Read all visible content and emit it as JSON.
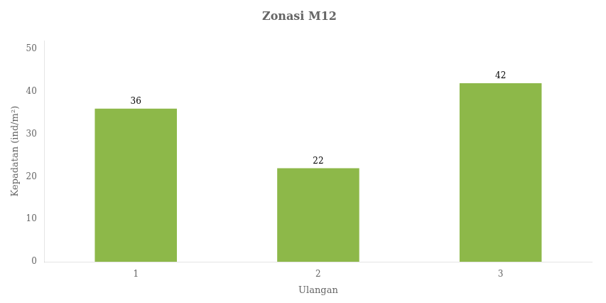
{
  "chart_data": {
    "type": "bar",
    "title": "Zonasi M12",
    "xlabel": "Ulangan",
    "ylabel": "Kepadatan (ind/m²)",
    "categories": [
      "1",
      "2",
      "3"
    ],
    "values": [
      36,
      22,
      42
    ],
    "color": "#8db849",
    "ylim": [
      0,
      52
    ],
    "yticks": [
      0,
      10,
      20,
      30,
      40,
      50
    ],
    "grid": false,
    "data_labels": true
  }
}
